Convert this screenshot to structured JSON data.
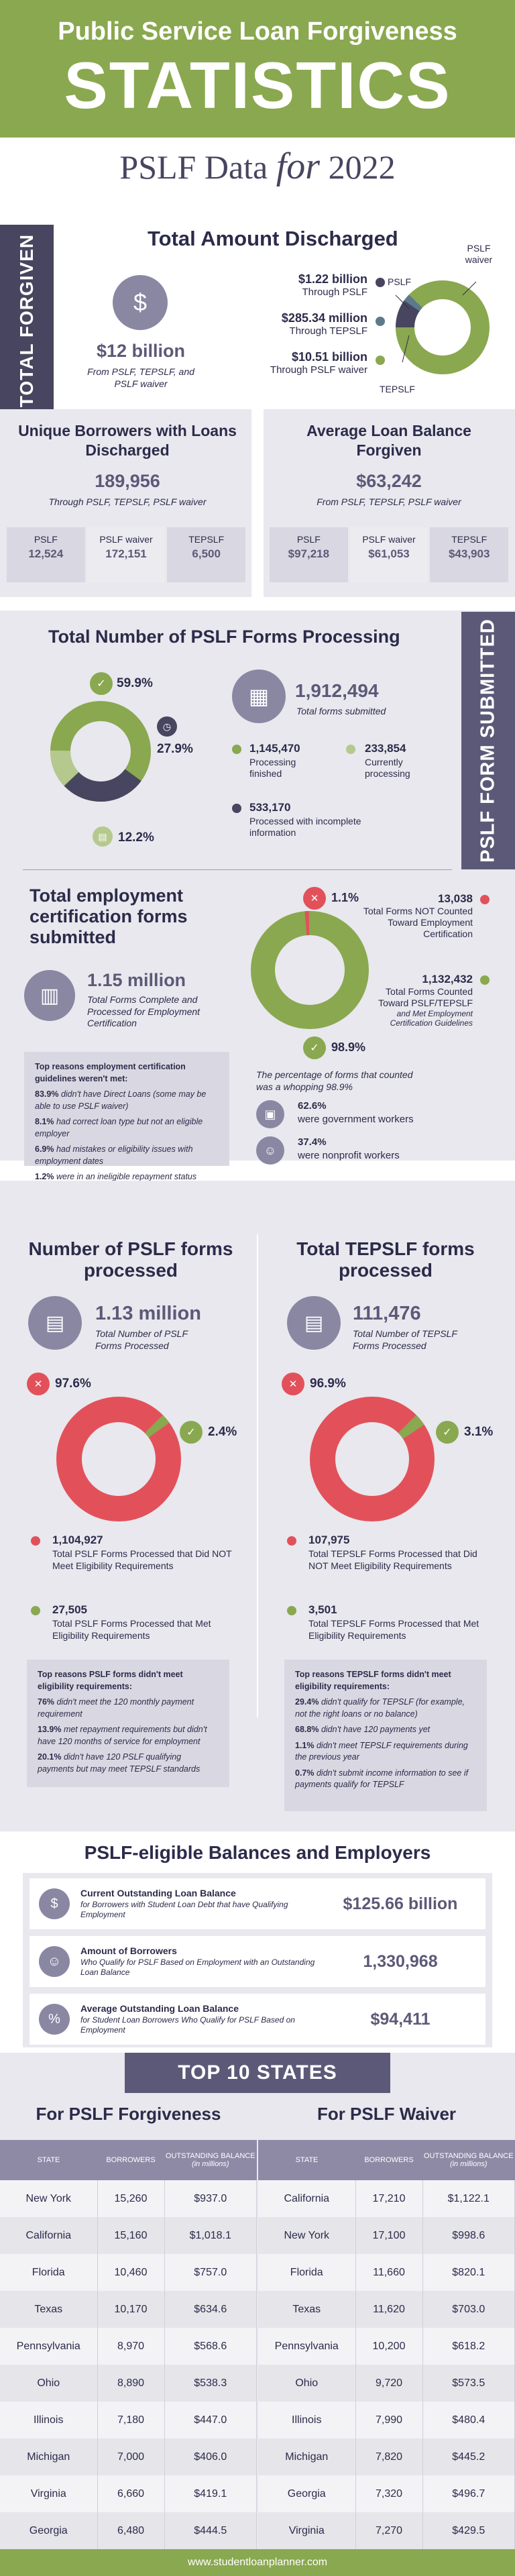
{
  "header": {
    "title_line": "Public Service Loan Forgiveness",
    "title_big": "STATISTICS",
    "sub_a": "PSLF Data",
    "sub_b": "for",
    "sub_c": "2022"
  },
  "colors": {
    "green": "#8aa84f",
    "dark": "#47455f",
    "red": "#e2515a",
    "lav": "#e8e8ee"
  },
  "discharged": {
    "side": "TOTAL FORGIVEN",
    "title": "Total Amount Discharged",
    "total": "$12 billion",
    "total_sub": "From PSLF, TEPSLF, and PSLF waiver",
    "items": [
      {
        "v": "$1.22 billion",
        "l": "Through PSLF"
      },
      {
        "v": "$285.34 million",
        "l": "Through TEPSLF"
      },
      {
        "v": "$10.51 billion",
        "l": "Through PSLF waiver"
      }
    ],
    "donut_labels": {
      "pslf": "PSLF",
      "waiver": "PSLF waiver",
      "tepslf": "TEPSLF"
    }
  },
  "borrowers": {
    "title": "Unique Borrowers with Loans Discharged",
    "value": "189,956",
    "sub": "Through PSLF, TEPSLF, PSLF waiver",
    "cols": [
      {
        "l": "PSLF",
        "v": "12,524"
      },
      {
        "l": "PSLF waiver",
        "v": "172,151"
      },
      {
        "l": "TEPSLF",
        "v": "6,500"
      }
    ]
  },
  "avg": {
    "title": "Average Loan Balance Forgiven",
    "value": "$63,242",
    "sub": "From PSLF, TEPSLF, PSLF waiver",
    "cols": [
      {
        "l": "PSLF",
        "v": "$97,218"
      },
      {
        "l": "PSLF waiver",
        "v": "$61,053"
      },
      {
        "l": "TEPSLF",
        "v": "$43,903"
      }
    ]
  },
  "forms": {
    "side": "PSLF FORM SUBMITTED",
    "title": "Total Number of PSLF Forms Processing",
    "p1": "59.9%",
    "p2": "27.9%",
    "p3": "12.2%",
    "total": "1,912,494",
    "total_l": "Total forms submitted",
    "a_v": "1,145,470",
    "a_l": "Processing finished",
    "b_v": "233,854",
    "b_l": "Currently processing",
    "c_v": "533,170",
    "c_l": "Processed with incomplete information"
  },
  "ecf": {
    "title": "Total employment certification forms submitted",
    "total": "1.15 million",
    "total_l": "Total Forms Complete and Processed for Employment Certification",
    "p_no": "1.1%",
    "p_yes": "98.9%",
    "no_v": "13,038",
    "no_l": "Total Forms NOT Counted Toward Employment Certification",
    "yes_v": "1,132,432",
    "yes_l": "Total Forms Counted Toward PSLF/TEPSLF",
    "yes_sub": "and Met Employment Certification Guidelines",
    "note_title": "Top reasons employment certification guidelines weren't met:",
    "notes": [
      {
        "p": "83.9%",
        "t": "didn't have Direct Loans (some may be able to use PSLF waiver)"
      },
      {
        "p": "8.1%",
        "t": "had correct loan type but not an eligible employer"
      },
      {
        "p": "6.9%",
        "t": "had mistakes or eligibility issues with employment dates"
      },
      {
        "p": "1.2%",
        "t": "were in an ineligible repayment status (such as default)"
      }
    ],
    "split_title": "The percentage of forms that counted was a whopping 98.9%",
    "gov_p": "62.6%",
    "gov_l": "were government workers",
    "np_p": "37.4%",
    "np_l": "were nonprofit workers"
  },
  "pslf_proc": {
    "title": "Number of PSLF forms processed",
    "total": "1.13 million",
    "total_l": "Total Number of PSLF Forms Processed",
    "p_red": "97.6%",
    "p_grn": "2.4%",
    "red_v": "1,104,927",
    "red_l": "Total PSLF Forms Processed that Did NOT Meet Eligibility Requirements",
    "grn_v": "27,505",
    "grn_l": "Total PSLF Forms Processed that Met Eligibility Requirements",
    "note_title": "Top reasons PSLF forms didn't meet eligibility requirements:",
    "notes": [
      {
        "p": "76%",
        "t": "didn't meet the 120 monthly payment requirement"
      },
      {
        "p": "13.9%",
        "t": "met repayment requirements but didn't have 120 months of service for employment"
      },
      {
        "p": "20.1%",
        "t": "didn't have 120 PSLF qualifying payments but may meet TEPSLF standards"
      }
    ]
  },
  "tepslf_proc": {
    "title": "Total TEPSLF forms processed",
    "total": "111,476",
    "total_l": "Total Number of TEPSLF Forms Processed",
    "p_red": "96.9%",
    "p_grn": "3.1%",
    "red_v": "107,975",
    "red_l": "Total TEPSLF Forms Processed that Did NOT Meet Eligibility Requirements",
    "grn_v": "3,501",
    "grn_l": "Total TEPSLF Forms Processed that Met Eligibility Requirements",
    "note_title": "Top reasons TEPSLF forms didn't meet eligibility requirements:",
    "notes": [
      {
        "p": "29.4%",
        "t": "didn't qualify for TEPSLF (for example, not the right loans or no balance)"
      },
      {
        "p": "68.8%",
        "t": "didn't have 120 payments yet"
      },
      {
        "p": "1.1%",
        "t": "didn't meet TEPSLF requirements during the previous year"
      },
      {
        "p": "0.7%",
        "t": "didn't submit income information to see if payments qualify for TEPSLF"
      }
    ]
  },
  "balances": {
    "title": "PSLF-eligible Balances and Employers",
    "rows": [
      {
        "t": "Current Outstanding Loan Balance",
        "s": "for Borrowers with Student Loan Debt that have Qualifying Employment",
        "v": "$125.66 billion"
      },
      {
        "t": "Amount of Borrowers",
        "s": "Who Qualify for PSLF Based on Employment with an Outstanding Loan Balance",
        "v": "1,330,968"
      },
      {
        "t": "Average Outstanding Loan Balance",
        "s": "for Student Loan Borrowers Who Qualify for PSLF Based on Employment",
        "v": "$94,411"
      }
    ]
  },
  "states": {
    "banner": "TOP 10 STATES",
    "t1": "For PSLF Forgiveness",
    "t2": "For PSLF Waiver",
    "h1": "STATE",
    "h2": "BORROWERS",
    "h3": "OUTSTANDING BALANCE",
    "h3s": "(in millions)",
    "left": [
      [
        "New York",
        "15,260",
        "$937.0"
      ],
      [
        "California",
        "15,160",
        "$1,018.1"
      ],
      [
        "Florida",
        "10,460",
        "$757.0"
      ],
      [
        "Texas",
        "10,170",
        "$634.6"
      ],
      [
        "Pennsylvania",
        "8,970",
        "$568.6"
      ],
      [
        "Ohio",
        "8,890",
        "$538.3"
      ],
      [
        "Illinois",
        "7,180",
        "$447.0"
      ],
      [
        "Michigan",
        "7,000",
        "$406.0"
      ],
      [
        "Virginia",
        "6,660",
        "$419.1"
      ],
      [
        "Georgia",
        "6,480",
        "$444.5"
      ]
    ],
    "right": [
      [
        "California",
        "17,210",
        "$1,122.1"
      ],
      [
        "New York",
        "17,100",
        "$998.6"
      ],
      [
        "Florida",
        "11,660",
        "$820.1"
      ],
      [
        "Texas",
        "11,620",
        "$703.0"
      ],
      [
        "Pennsylvania",
        "10,200",
        "$618.2"
      ],
      [
        "Ohio",
        "9,720",
        "$573.5"
      ],
      [
        "Illinois",
        "7,990",
        "$480.4"
      ],
      [
        "Michigan",
        "7,820",
        "$445.2"
      ],
      [
        "Georgia",
        "7,320",
        "$496.7"
      ],
      [
        "Virginia",
        "7,270",
        "$429.5"
      ]
    ]
  },
  "footer": {
    "url": "www.studentloanplanner.com"
  }
}
